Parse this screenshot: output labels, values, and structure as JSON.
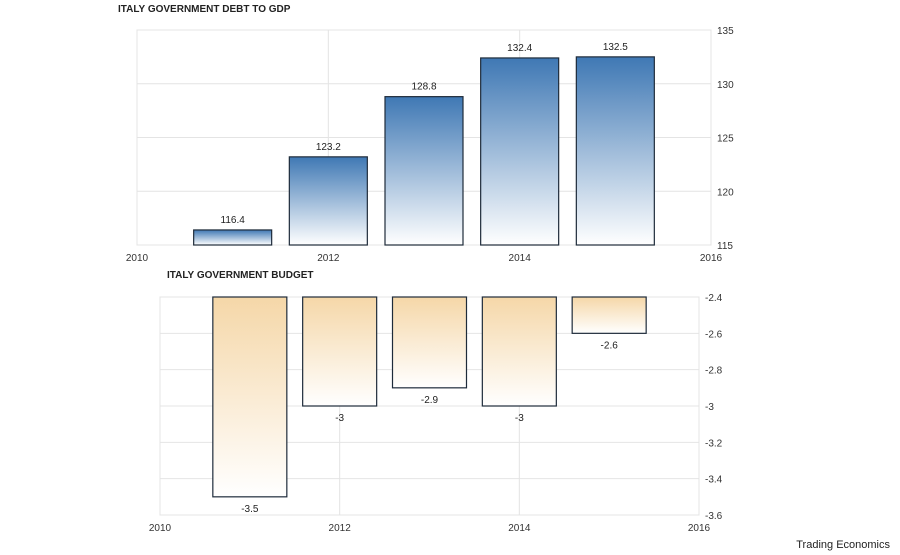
{
  "chart_data": [
    {
      "type": "bar",
      "title": "ITALY GOVERNMENT DEBT TO GDP",
      "x_ticks": [
        "2010",
        "2012",
        "2014",
        "2016"
      ],
      "x_range": [
        2010,
        2016
      ],
      "x": [
        2011,
        2012,
        2013,
        2014,
        2015
      ],
      "values": [
        116.4,
        123.2,
        128.8,
        132.4,
        132.5
      ],
      "data_labels": [
        "116.4",
        "123.2",
        "128.8",
        "132.4",
        "132.5"
      ],
      "ylim": [
        115,
        135
      ],
      "y_ticks": [
        "115",
        "120",
        "125",
        "130",
        "135"
      ],
      "y_tick_values": [
        115,
        120,
        125,
        130,
        135
      ],
      "color_top": "#3f78b4",
      "color_bottom": "#ffffff",
      "edge_color": "#1e2b3a"
    },
    {
      "type": "bar",
      "title": "ITALY GOVERNMENT BUDGET",
      "x_ticks": [
        "2010",
        "2012",
        "2014",
        "2016"
      ],
      "x_range": [
        2010,
        2016
      ],
      "x": [
        2011,
        2012,
        2013,
        2014,
        2015
      ],
      "values": [
        -3.5,
        -3,
        -2.9,
        -3,
        -2.6
      ],
      "data_labels": [
        "-3.5",
        "-3",
        "-2.9",
        "-3",
        "-2.6"
      ],
      "ylim": [
        -3.6,
        -2.4
      ],
      "y_ticks": [
        "-2.4",
        "-2.6",
        "-2.8",
        "-3",
        "-3.2",
        "-3.4",
        "-3.6"
      ],
      "y_tick_values": [
        -2.4,
        -2.6,
        -2.8,
        -3,
        -3.2,
        -3.4,
        -3.6
      ],
      "color_top": "#f5d7a8",
      "color_bottom": "#ffffff",
      "edge_color": "#1e2b3a"
    }
  ],
  "credit": "Trading Economics"
}
